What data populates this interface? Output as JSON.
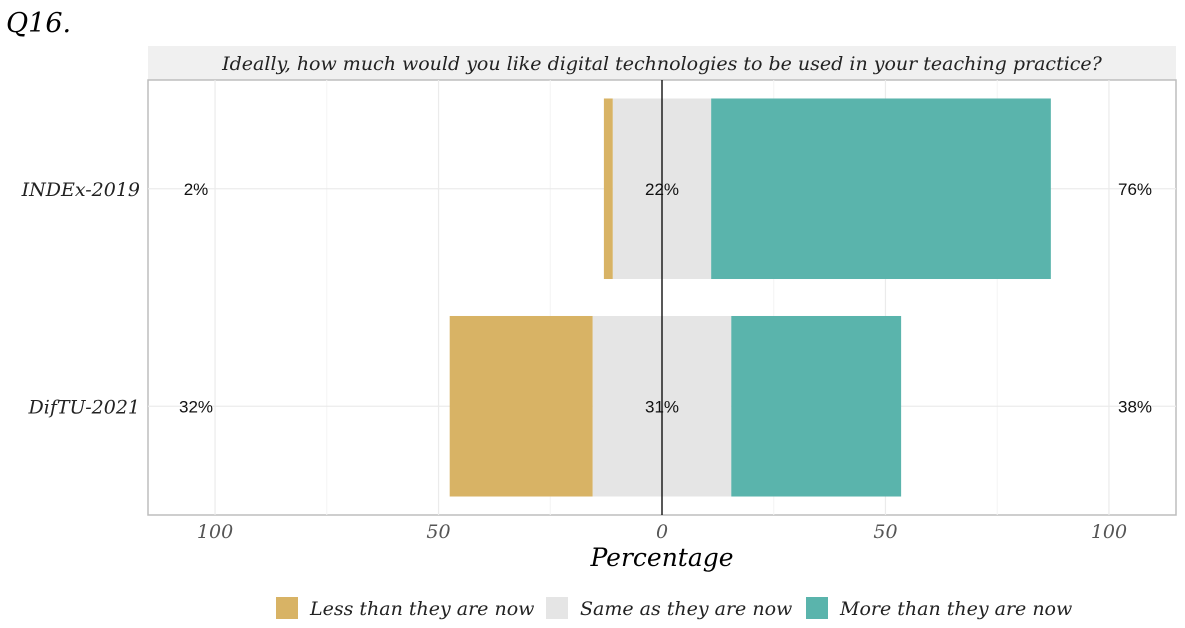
{
  "figure": {
    "question_id": "Q16."
  },
  "chart_data": {
    "type": "bar",
    "orientation": "horizontal",
    "stacked": "diverging",
    "title": "Ideally, how much would you like digital technologies to be used in your teaching practice?",
    "xlabel": "Percentage",
    "ylabel": "",
    "xlim": [
      -115,
      115
    ],
    "xticks": [
      -100,
      -50,
      0,
      50,
      100
    ],
    "xtick_labels": [
      "100",
      "50",
      "0",
      "50",
      "100"
    ],
    "grid": true,
    "legend_position": "bottom",
    "categories": [
      "INDEx-2019",
      "DifTU-2021"
    ],
    "series": [
      {
        "name": "Less than they are now",
        "color": "#D8B365",
        "values": [
          2,
          32
        ]
      },
      {
        "name": "Same as they are now",
        "color": "#E5E5E5",
        "values": [
          22,
          31
        ]
      },
      {
        "name": "More than they are now",
        "color": "#5AB4AC",
        "values": [
          76,
          38
        ]
      }
    ],
    "labels": {
      "left": [
        "2%",
        "32%"
      ],
      "center": [
        "22%",
        "31%"
      ],
      "right": [
        "76%",
        "38%"
      ]
    }
  }
}
